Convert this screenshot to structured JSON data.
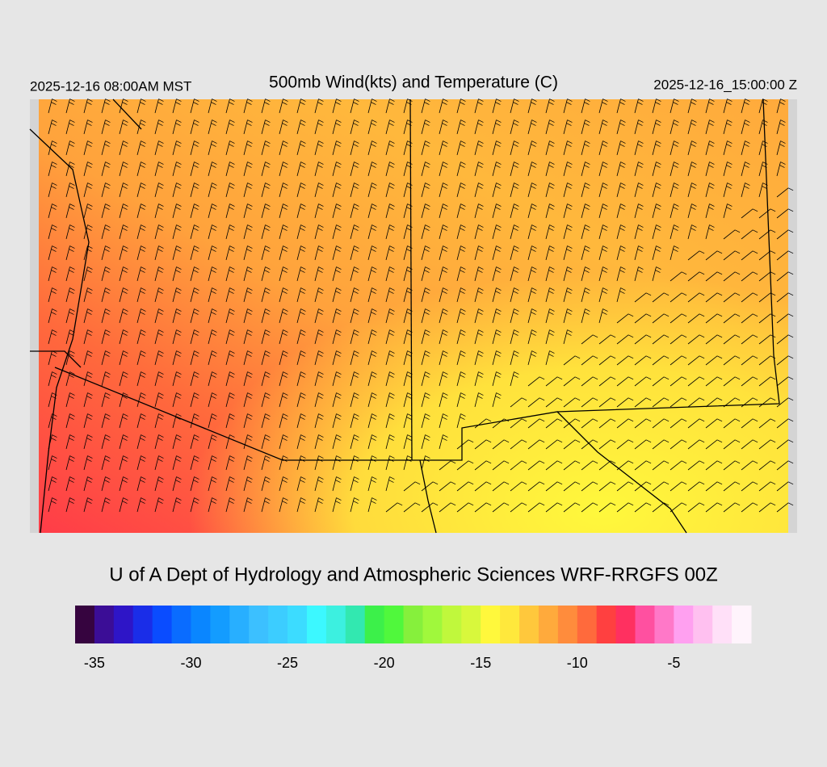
{
  "header": {
    "title": "500mb Wind(kts) and Temperature (C)",
    "valid_local": "2025-12-16 08:00AM MST",
    "valid_utc": "2025-12-16_15:00:00 Z"
  },
  "credit": "U of A Dept of Hydrology and Atmospheric Sciences WRF-RRGFS 00Z",
  "colorbar": {
    "bins": [
      -36,
      -35,
      -34,
      -33,
      -32,
      -31,
      -30,
      -29,
      -28,
      -27,
      -26,
      -25,
      -24,
      -23,
      -22,
      -21,
      -20,
      -19,
      -18,
      -17,
      -16,
      -15,
      -14,
      -13,
      -12,
      -11,
      -10,
      -9,
      -8,
      -7,
      -6,
      -5,
      -4,
      -3,
      -2,
      -1
    ],
    "colors": [
      "#36043f",
      "#3b0d96",
      "#2e15c7",
      "#1a2de8",
      "#0a4cff",
      "#0a6cff",
      "#0a86ff",
      "#139cff",
      "#28afff",
      "#3cc0ff",
      "#3ccdff",
      "#3cdcff",
      "#3cf8ff",
      "#3cf0e0",
      "#32e8b0",
      "#3cf04a",
      "#50f83c",
      "#86f03c",
      "#a0f83c",
      "#c0f83c",
      "#d8f83c",
      "#fff83c",
      "#ffe83c",
      "#ffc83c",
      "#ffaa3c",
      "#ff8c3c",
      "#ff6a3c",
      "#ff4040",
      "#ff3060",
      "#ff50a0",
      "#ff78c8",
      "#ffa0f0",
      "#ffc0f0",
      "#ffe0f8",
      "#fff4fc"
    ],
    "ticks": [
      -35,
      -30,
      -25,
      -20,
      -15,
      -10,
      -5
    ]
  }
}
